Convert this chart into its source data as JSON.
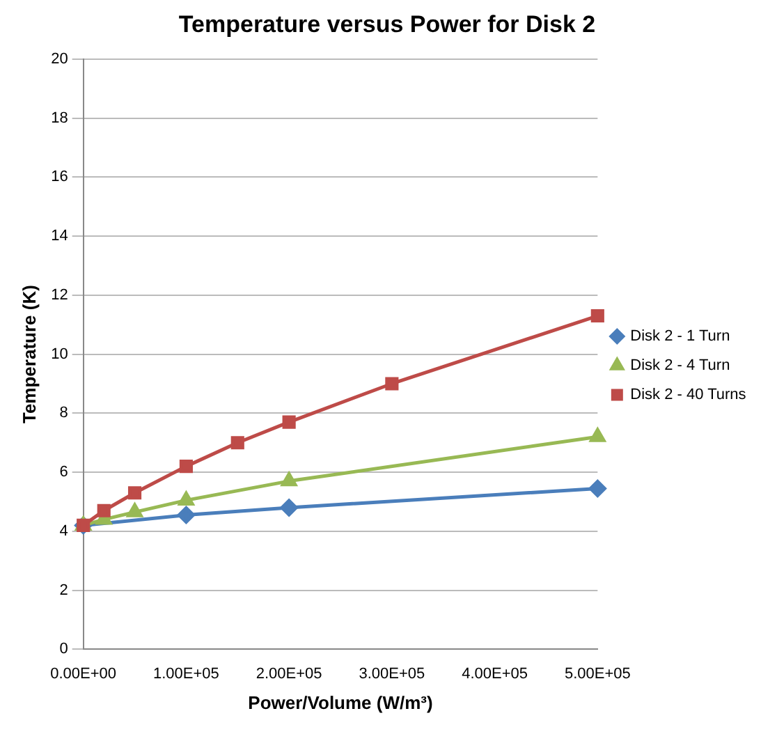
{
  "chart_data": {
    "type": "line",
    "title": "Temperature versus Power for Disk 2",
    "xlabel": "Power/Volume (W/m³)",
    "ylabel": "Temperature (K)",
    "xlim": [
      0,
      500000
    ],
    "xticks": [
      {
        "value": 0,
        "label": "0.00E+00"
      },
      {
        "value": 100000,
        "label": "1.00E+05"
      },
      {
        "value": 200000,
        "label": "2.00E+05"
      },
      {
        "value": 300000,
        "label": "3.00E+05"
      },
      {
        "value": 400000,
        "label": "4.00E+05"
      },
      {
        "value": 500000,
        "label": "5.00E+05"
      }
    ],
    "ylim": [
      0,
      20
    ],
    "yticks": [
      0,
      2,
      4,
      6,
      8,
      10,
      12,
      14,
      16,
      18,
      20
    ],
    "grid": "y",
    "legend": "right",
    "line_style": "solid",
    "series": [
      {
        "name": "Disk 2 - 1 Turn",
        "color": "#4a7ebb",
        "marker": "diamond",
        "x": [
          0,
          100000,
          200000,
          500000
        ],
        "values": [
          4.2,
          4.55,
          4.8,
          5.45
        ]
      },
      {
        "name": "Disk 2 - 4 Turn",
        "color": "#98b954",
        "marker": "triangle",
        "x": [
          0,
          20000,
          50000,
          100000,
          200000,
          500000
        ],
        "values": [
          4.2,
          4.4,
          4.65,
          5.05,
          5.7,
          7.2
        ]
      },
      {
        "name": "Disk 2 - 40 Turns",
        "color": "#be4b48",
        "marker": "square",
        "x": [
          0,
          20000,
          50000,
          100000,
          150000,
          200000,
          300000,
          500000
        ],
        "values": [
          4.2,
          4.7,
          5.3,
          6.2,
          7.0,
          7.7,
          9.0,
          11.3
        ]
      }
    ]
  }
}
